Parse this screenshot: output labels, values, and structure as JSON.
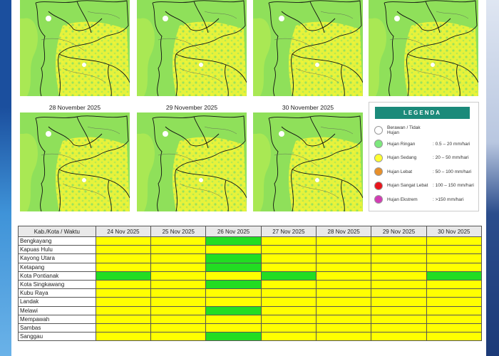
{
  "map_titles": [
    "28 November 2025",
    "29 November 2025",
    "30 November 2025"
  ],
  "legend": {
    "title": "LEGENDA",
    "items": [
      {
        "label": "Berawan / Tidak Hujan",
        "color": "#ffffff"
      },
      {
        "label": "Hujan Ringan",
        "range": ": 0.5 – 20 mm/hari",
        "color": "#7de87d"
      },
      {
        "label": "Hujan Sedang",
        "range": ": 20 – 50 mm/hari",
        "color": "#ffff33"
      },
      {
        "label": "Hujan Lebat",
        "range": ": 50 – 100 mm/hari",
        "color": "#e8902a"
      },
      {
        "label": "Hujan Sangat Lebat",
        "range": ": 100 – 150 mm/hari",
        "color": "#e8141c"
      },
      {
        "label": "Hujan Ekstrem",
        "range": ": >150 mm/hari",
        "color": "#d23cb4"
      }
    ]
  },
  "table": {
    "header": [
      "Kab./Kota / Waktu",
      "24 Nov 2025",
      "25 Nov 2025",
      "26 Nov 2025",
      "27 Nov 2025",
      "28 Nov 2025",
      "29 Nov 2025",
      "30 Nov 2025"
    ],
    "rows": [
      {
        "name": "Bengkayang",
        "cells": [
          "#ffff00",
          "#ffff00",
          "#22dd22",
          "#ffff00",
          "#ffff00",
          "#ffff00",
          "#ffff00"
        ]
      },
      {
        "name": "Kapuas Hulu",
        "cells": [
          "#ffff00",
          "#ffff00",
          "#ffff00",
          "#ffff00",
          "#ffff00",
          "#ffff00",
          "#ffff00"
        ]
      },
      {
        "name": "Kayong Utara",
        "cells": [
          "#ffff00",
          "#ffff00",
          "#22dd22",
          "#ffff00",
          "#ffff00",
          "#ffff00",
          "#ffff00"
        ]
      },
      {
        "name": "Ketapang",
        "cells": [
          "#ffff00",
          "#ffff00",
          "#22dd22",
          "#ffff00",
          "#ffff00",
          "#ffff00",
          "#ffff00"
        ]
      },
      {
        "name": "Kota Pontianak",
        "cells": [
          "#22dd22",
          "#ffff00",
          "#ffff00",
          "#22dd22",
          "#ffff00",
          "#ffff00",
          "#22dd22"
        ]
      },
      {
        "name": "Kota Singkawang",
        "cells": [
          "#ffff00",
          "#ffff00",
          "#22dd22",
          "#ffff00",
          "#ffff00",
          "#ffff00",
          "#ffff00"
        ]
      },
      {
        "name": "Kubu Raya",
        "cells": [
          "#ffff00",
          "#ffff00",
          "#ffff00",
          "#ffff00",
          "#ffff00",
          "#ffff00",
          "#ffff00"
        ]
      },
      {
        "name": "Landak",
        "cells": [
          "#ffff00",
          "#ffff00",
          "#ffff00",
          "#ffff00",
          "#ffff00",
          "#ffff00",
          "#ffff00"
        ]
      },
      {
        "name": "Melawi",
        "cells": [
          "#ffff00",
          "#ffff00",
          "#22dd22",
          "#ffff00",
          "#ffff00",
          "#ffff00",
          "#ffff00"
        ]
      },
      {
        "name": "Mempawah",
        "cells": [
          "#ffff00",
          "#ffff00",
          "#ffff00",
          "#ffff00",
          "#ffff00",
          "#ffff00",
          "#ffff00"
        ]
      },
      {
        "name": "Sambas",
        "cells": [
          "#ffff00",
          "#ffff00",
          "#ffff00",
          "#ffff00",
          "#ffff00",
          "#ffff00",
          "#ffff00"
        ]
      },
      {
        "name": "Sanggau",
        "cells": [
          "#ffff00",
          "#ffff00",
          "#22dd22",
          "#ffff00",
          "#ffff00",
          "#ffff00",
          "#ffff00"
        ]
      }
    ]
  }
}
